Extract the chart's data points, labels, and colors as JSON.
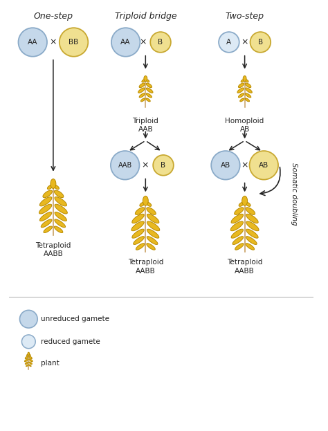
{
  "title_one_step": "One-step",
  "title_triploid": "Triploid bridge",
  "title_two_step": "Two-step",
  "bg_color": "#ffffff",
  "unreduced_gamete_color": "#c5d8ea",
  "reduced_gamete_color": "#ddeaf5",
  "yellow_gamete_color": "#f0e090",
  "wheat_fill": "#e8b820",
  "wheat_edge": "#b88a00",
  "stem_color": "#c8a060",
  "arrow_color": "#222222",
  "text_color": "#222222",
  "legend_unreduced": "unreduced gamete",
  "legend_reduced": "reduced gamete",
  "legend_plant": "plant",
  "label_tetraploid_aabb": "Tetraploid\nAABB",
  "label_triploid_aab": "Triploid\nAAB",
  "label_homoploid_ab": "Homoploid\nAB",
  "somatic_doubling_text": "Somatic doubling"
}
